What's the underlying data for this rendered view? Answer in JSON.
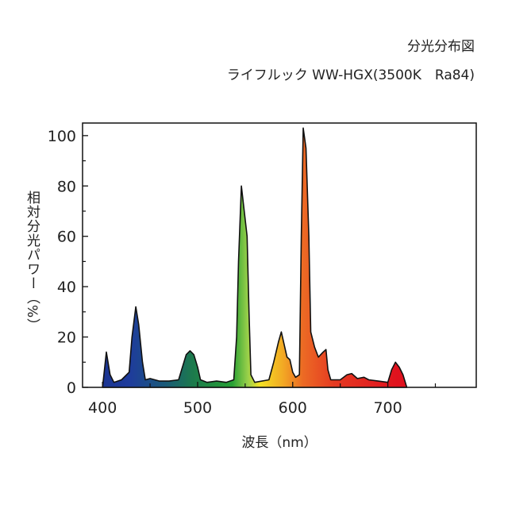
{
  "chart_data": {
    "type": "area",
    "title": "分光分布図",
    "subtitle": "ライフルック WW-HGX(3500K　Ra84)",
    "x_label": "波長（nm）",
    "y_label": "相対分光パワー（%）",
    "x": [
      400,
      404,
      408,
      412,
      420,
      428,
      431,
      435,
      438,
      442,
      445,
      450,
      460,
      470,
      480,
      484,
      488,
      492,
      496,
      500,
      503,
      510,
      520,
      530,
      538,
      541,
      543,
      546,
      549,
      552,
      554,
      556,
      560,
      575,
      580,
      585,
      588,
      591,
      594,
      597,
      600,
      603,
      607,
      609,
      611,
      614,
      617,
      619,
      623,
      627,
      632,
      635,
      637,
      640,
      650,
      657,
      662,
      668,
      675,
      680,
      690,
      700,
      704,
      708,
      712,
      716,
      720
    ],
    "values": [
      0,
      14,
      5,
      2,
      3,
      6,
      20,
      32,
      25,
      10,
      3,
      3.5,
      2.5,
      2.5,
      3,
      8,
      13,
      14.5,
      13,
      8,
      3,
      2,
      2.5,
      2,
      3,
      20,
      50,
      80,
      70,
      60,
      30,
      5,
      2,
      3,
      10,
      18,
      22,
      17,
      12,
      11,
      6,
      4,
      5,
      60,
      103,
      95,
      60,
      22,
      16,
      12,
      14,
      15,
      7,
      3,
      3,
      5,
      5.5,
      3.5,
      4,
      3,
      2.5,
      2,
      7,
      10,
      8,
      5,
      0
    ],
    "xlim": [
      379,
      793
    ],
    "ylim": [
      0,
      105
    ],
    "xticks": [
      400,
      500,
      600,
      700
    ],
    "yticks": [
      0,
      20,
      40,
      60,
      80,
      100
    ],
    "xminorticks": [
      450,
      550,
      650,
      750
    ],
    "yminorticks": [
      10,
      30,
      50,
      70,
      90
    ]
  }
}
